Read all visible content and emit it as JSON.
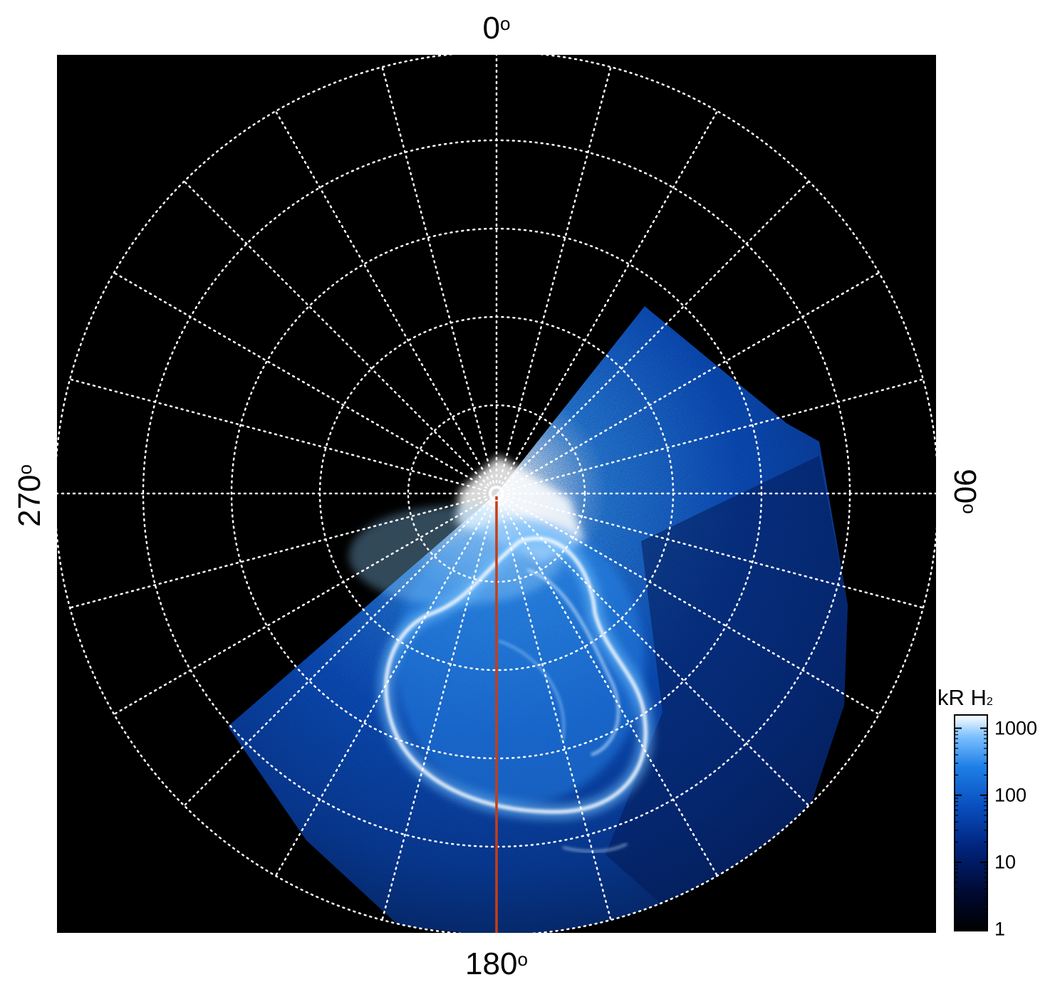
{
  "polar_labels": {
    "top": "0",
    "right": "90",
    "bottom": "180",
    "left": "270",
    "degree_symbol": "o"
  },
  "colorbar": {
    "title_main": "kR H",
    "title_sub": "2",
    "ticks": [
      {
        "label": "1000",
        "value": 1000
      },
      {
        "label": "100",
        "value": 100
      },
      {
        "label": "10",
        "value": 10
      },
      {
        "label": "1",
        "value": 1
      }
    ],
    "range": [
      1,
      1500
    ],
    "scale": "log",
    "colors": [
      "#000000",
      "#000a33",
      "#00237a",
      "#0a4fc0",
      "#1e7fe6",
      "#7cc0ff",
      "#ffffff"
    ]
  },
  "colors": {
    "background": "#000000",
    "grid": "#ffffff",
    "meridian_line": "#c83c14",
    "aurora_core": "#ffffff",
    "aurora_glow": "#3a8fe8",
    "diffuse": "#0b3fa6"
  },
  "grid": {
    "style": "dotted",
    "meridian_spacing_deg": 15,
    "colatitude_circles": 5
  },
  "icons": {
    "polar_map": "aurora-polar-projection"
  }
}
